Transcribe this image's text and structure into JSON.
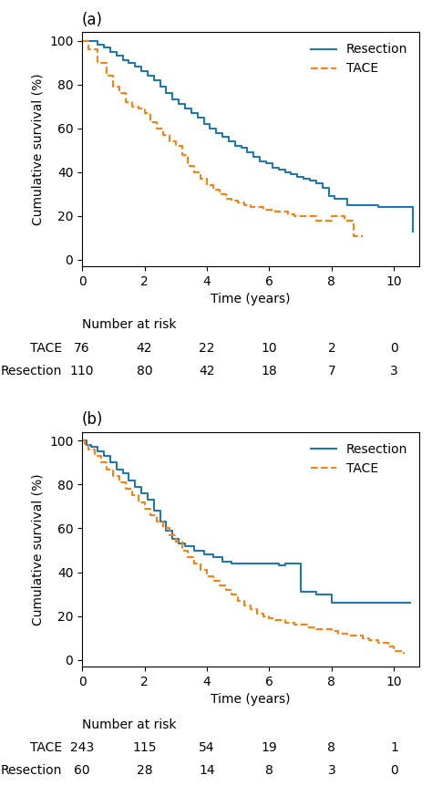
{
  "chart_data": [
    {
      "type": "step",
      "title": "(a)",
      "xlabel": "Time (years)",
      "ylabel": "Cumulative survival (%)",
      "xlim": [
        0,
        10.8
      ],
      "ylim": [
        -3,
        104
      ],
      "xticks": [
        0,
        2,
        4,
        6,
        8,
        10
      ],
      "yticks": [
        0,
        20,
        40,
        60,
        80,
        100
      ],
      "legend": "upper right",
      "series": [
        {
          "name": "Resection",
          "line_style": "solid",
          "x": [
            0,
            0.3,
            0.5,
            0.7,
            0.9,
            1.1,
            1.3,
            1.5,
            1.7,
            1.9,
            2.1,
            2.3,
            2.5,
            2.7,
            2.9,
            3.1,
            3.3,
            3.5,
            3.7,
            3.9,
            4.1,
            4.3,
            4.5,
            4.7,
            4.9,
            5.1,
            5.3,
            5.5,
            5.7,
            5.9,
            6.1,
            6.3,
            6.5,
            6.7,
            6.9,
            7.1,
            7.3,
            7.5,
            7.7,
            7.9,
            8.1,
            8.5,
            9.0,
            9.5,
            10.0,
            10.6
          ],
          "values": [
            100,
            100,
            98,
            97,
            95,
            93,
            91,
            90,
            88,
            86,
            84,
            82,
            79,
            76,
            73,
            71,
            69,
            67,
            65,
            62,
            60,
            58,
            56,
            54,
            52,
            51,
            49,
            47,
            45,
            44,
            42,
            41,
            40,
            39,
            38,
            37,
            36,
            35,
            33,
            29,
            28,
            25,
            25,
            24,
            24,
            13
          ]
        },
        {
          "name": "TACE",
          "line_style": "dashed",
          "x": [
            0,
            0.2,
            0.5,
            0.8,
            1.0,
            1.2,
            1.4,
            1.6,
            1.8,
            2.0,
            2.2,
            2.4,
            2.6,
            2.8,
            3.0,
            3.2,
            3.4,
            3.6,
            3.8,
            4.0,
            4.2,
            4.4,
            4.6,
            4.8,
            5.0,
            5.2,
            5.4,
            5.6,
            5.8,
            6.0,
            6.2,
            6.4,
            6.6,
            6.8,
            7.0,
            7.5,
            8.0,
            8.4,
            8.7,
            9.0
          ],
          "values": [
            100,
            96,
            90,
            84,
            79,
            76,
            72,
            70,
            69,
            67,
            63,
            60,
            57,
            54,
            52,
            48,
            43,
            40,
            37,
            34,
            32,
            30,
            28,
            27,
            26,
            25,
            24,
            24,
            23,
            23,
            22,
            22,
            21,
            20,
            20,
            18,
            20,
            18,
            11,
            11
          ]
        }
      ],
      "risk_table": {
        "header": "Number at risk",
        "times": [
          0,
          2,
          4,
          6,
          8,
          10
        ],
        "rows": [
          {
            "name": "TACE",
            "values": [
              76,
              42,
              22,
              10,
              2,
              0
            ]
          },
          {
            "name": "Resection",
            "values": [
              110,
              80,
              42,
              18,
              7,
              3
            ]
          }
        ]
      }
    },
    {
      "type": "step",
      "title": "(b)",
      "xlabel": "Time (years)",
      "ylabel": "Cumulative survival (%)",
      "xlim": [
        0,
        10.8
      ],
      "ylim": [
        -3,
        104
      ],
      "xticks": [
        0,
        2,
        4,
        6,
        8,
        10
      ],
      "yticks": [
        0,
        20,
        40,
        60,
        80,
        100
      ],
      "legend": "upper right",
      "series": [
        {
          "name": "Resection",
          "line_style": "solid",
          "x": [
            0,
            0.15,
            0.3,
            0.5,
            0.7,
            0.9,
            1.1,
            1.3,
            1.5,
            1.7,
            1.9,
            2.1,
            2.3,
            2.5,
            2.7,
            2.9,
            3.1,
            3.3,
            3.6,
            3.9,
            4.2,
            4.5,
            4.8,
            5.0,
            5.5,
            6.0,
            6.3,
            6.5,
            7.0,
            7.5,
            8.0,
            10.0,
            10.5
          ],
          "values": [
            100,
            98,
            97,
            95,
            93,
            90,
            87,
            85,
            82,
            79,
            76,
            73,
            68,
            63,
            59,
            55,
            53,
            52,
            50,
            48,
            47,
            45,
            44,
            44,
            44,
            44,
            43,
            44,
            31,
            30,
            26,
            26,
            26
          ]
        },
        {
          "name": "TACE",
          "line_style": "dashed",
          "x": [
            0,
            0.1,
            0.2,
            0.4,
            0.6,
            0.8,
            1.0,
            1.2,
            1.4,
            1.6,
            1.8,
            2.0,
            2.2,
            2.4,
            2.6,
            2.8,
            3.0,
            3.2,
            3.4,
            3.6,
            3.8,
            4.0,
            4.2,
            4.4,
            4.6,
            4.8,
            5.0,
            5.2,
            5.4,
            5.6,
            5.8,
            6.0,
            6.2,
            6.5,
            6.8,
            7.0,
            7.2,
            7.5,
            7.8,
            8.0,
            8.2,
            8.5,
            8.8,
            9.0,
            9.2,
            9.5,
            9.8,
            10.0,
            10.3
          ],
          "values": [
            100,
            98,
            96,
            93,
            90,
            87,
            84,
            81,
            78,
            75,
            72,
            69,
            66,
            63,
            60,
            57,
            54,
            50,
            47,
            44,
            41,
            38,
            36,
            34,
            32,
            30,
            27,
            25,
            23,
            21,
            20,
            19,
            18,
            17,
            16,
            16,
            15,
            14,
            14,
            13,
            12,
            11,
            11,
            10,
            9,
            8,
            6,
            4,
            3
          ]
        }
      ],
      "risk_table": {
        "header": "Number at risk",
        "times": [
          0,
          2,
          4,
          6,
          8,
          10
        ],
        "rows": [
          {
            "name": "TACE",
            "values": [
              243,
              115,
              54,
              19,
              8,
              1
            ]
          },
          {
            "name": "Resection",
            "values": [
              60,
              28,
              14,
              8,
              3,
              0
            ]
          }
        ]
      }
    }
  ]
}
